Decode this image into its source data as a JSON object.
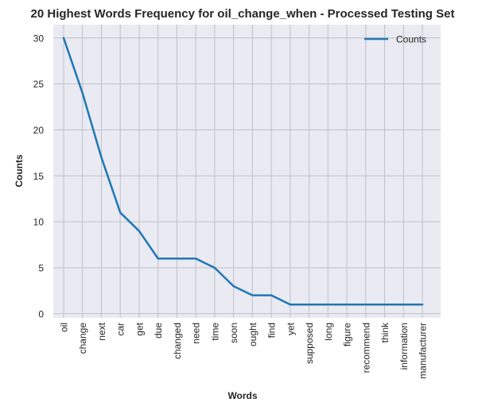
{
  "chart_data": {
    "type": "line",
    "title": "20 Highest Words Frequency for oil_change_when - Processed Testing Set",
    "xlabel": "Words",
    "ylabel": "Counts",
    "categories": [
      "oil",
      "change",
      "next",
      "car",
      "get",
      "due",
      "changed",
      "need",
      "time",
      "soon",
      "ought",
      "find",
      "yet",
      "supposed",
      "long",
      "figure",
      "recommend",
      "think",
      "information",
      "manufacturer"
    ],
    "series": [
      {
        "name": "Counts",
        "values": [
          30,
          24,
          17,
          11,
          9,
          6,
          6,
          6,
          5,
          3,
          2,
          2,
          1,
          1,
          1,
          1,
          1,
          1,
          1,
          1
        ]
      }
    ],
    "yticks": [
      0,
      5,
      10,
      15,
      20,
      25,
      30
    ],
    "ylim": [
      -0.45,
      31.45
    ],
    "grid": true,
    "legend_position": "top-right",
    "colors": {
      "line": "#1f77b4",
      "plot_background": "#eaeaf2",
      "grid": "#c0c0c8",
      "text": "#262626"
    }
  }
}
